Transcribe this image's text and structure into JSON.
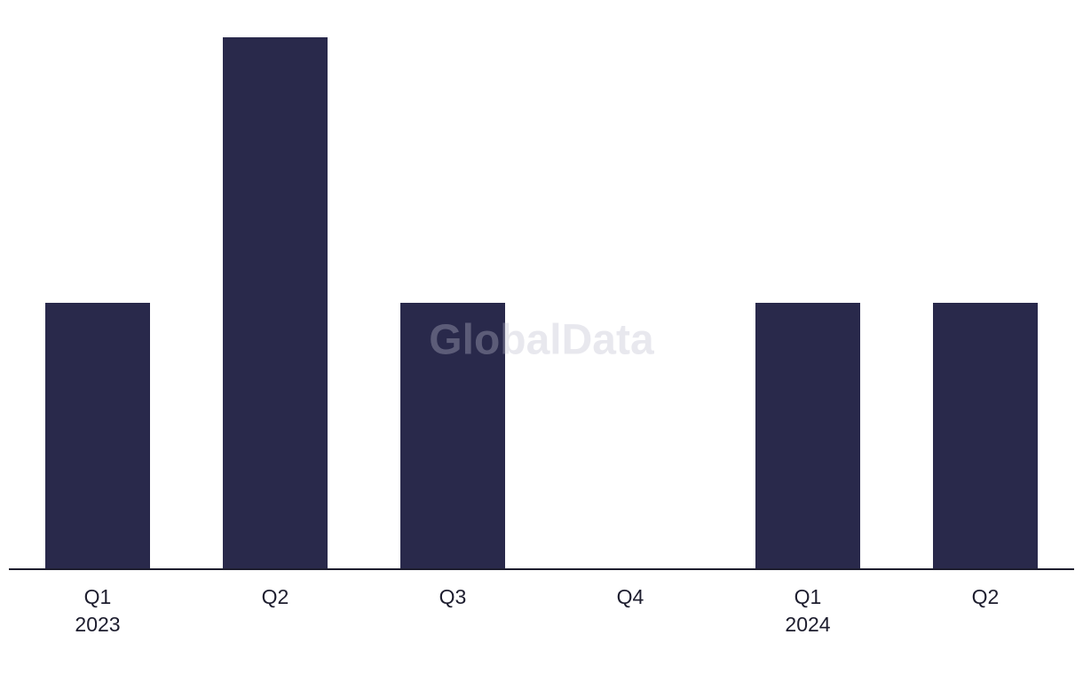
{
  "chart_data": {
    "type": "bar",
    "categories": [
      "Q1",
      "Q2",
      "Q3",
      "Q4",
      "Q1",
      "Q2"
    ],
    "category_years": [
      "2023",
      null,
      null,
      null,
      "2024",
      null
    ],
    "values": [
      1,
      2,
      1,
      0,
      1,
      1
    ],
    "color": "#29294b",
    "ylim": [
      0,
      2
    ],
    "watermark": "GlobalData"
  }
}
